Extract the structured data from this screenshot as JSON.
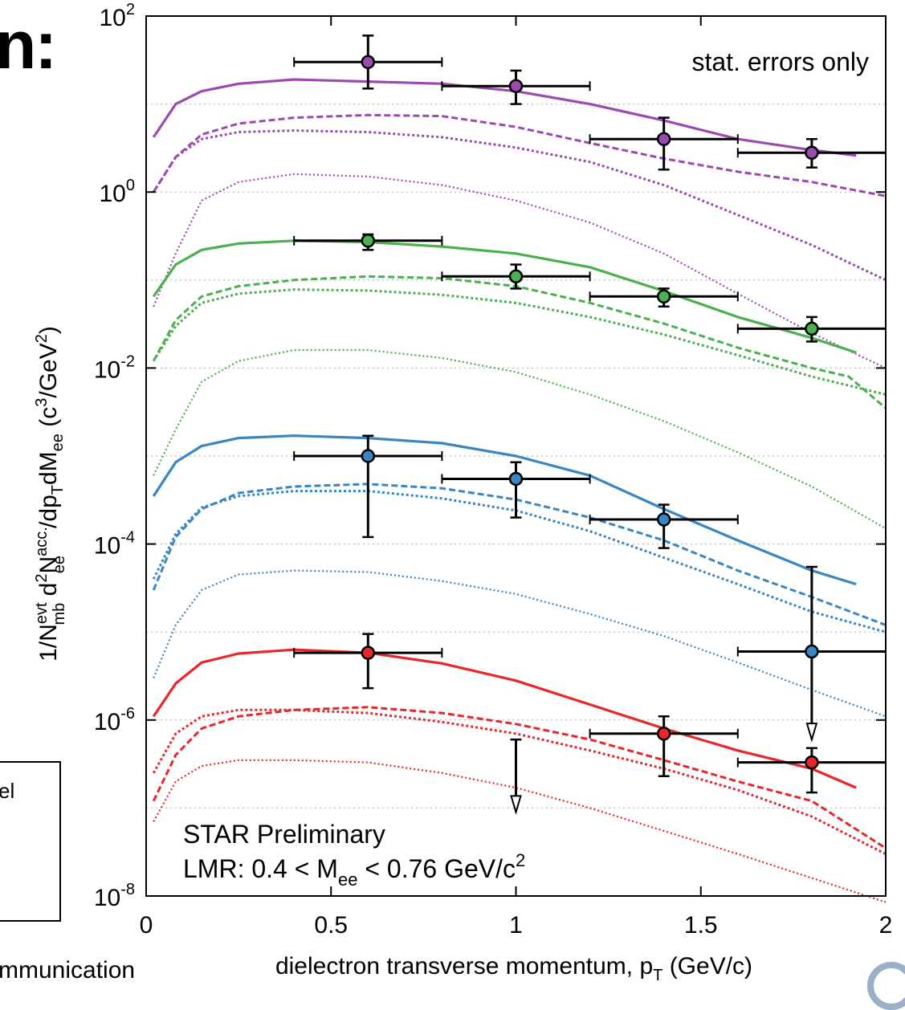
{
  "page": {
    "top_title_fragment": "n:",
    "legend_fragment": "el",
    "bottom_fragment": "mmunication"
  },
  "chart_data": {
    "type": "scatter",
    "xlabel_main": "dielectron transverse momentum, p",
    "xlabel_sub": "T",
    "xlabel_tail": " (GeV/c)",
    "ylabel_parts": [
      "1/N",
      "evt",
      "mb",
      " d",
      "2",
      "N",
      "acc.",
      "ee",
      "/dp",
      "T",
      "dM",
      "ee",
      " (c",
      "3",
      "/GeV",
      "2",
      ")"
    ],
    "x_ticks": [
      "0",
      "0.5",
      "1",
      "1.5",
      "2"
    ],
    "y_ticks": [
      {
        "base": "10",
        "exp": "2"
      },
      {
        "base": "10",
        "exp": "0"
      },
      {
        "base": "10",
        "exp": "-2"
      },
      {
        "base": "10",
        "exp": "-4"
      },
      {
        "base": "10",
        "exp": "-6"
      },
      {
        "base": "10",
        "exp": "-8"
      }
    ],
    "xlim": [
      0,
      2
    ],
    "ylim_log10": [
      -8,
      2
    ],
    "y_scale": "log",
    "annotations": {
      "stat_note": "stat. errors only",
      "preliminary": "STAR Preliminary",
      "lmr_a": "LMR: 0.4 < M",
      "lmr_sub": "ee",
      "lmr_b": " < 0.76 GeV/c",
      "lmr_sup": "2"
    },
    "colors": {
      "purple": "#9b4bb0",
      "green": "#4caf50",
      "blue": "#3a86c3",
      "red": "#e8262b",
      "axis": "#000000",
      "grid": "#aaaaaa"
    },
    "series": [
      {
        "color": "purple",
        "points": [
          {
            "x": 0.6,
            "y": 30,
            "xerr": 0.2,
            "ylo": 15,
            "yhi": 60
          },
          {
            "x": 1.0,
            "y": 16,
            "xerr": 0.2,
            "ylo": 10,
            "yhi": 24
          },
          {
            "x": 1.4,
            "y": 4,
            "xerr": 0.2,
            "ylo": 1.8,
            "yhi": 7
          },
          {
            "x": 1.8,
            "y": 2.8,
            "xerr": 0.2,
            "ylo": 1.9,
            "yhi": 4
          }
        ],
        "solid": [
          [
            0.02,
            4.2
          ],
          [
            0.08,
            10
          ],
          [
            0.15,
            14
          ],
          [
            0.25,
            17
          ],
          [
            0.4,
            19
          ],
          [
            0.6,
            18
          ],
          [
            0.8,
            17
          ],
          [
            1.0,
            14
          ],
          [
            1.2,
            10
          ],
          [
            1.4,
            6.5
          ],
          [
            1.6,
            4
          ],
          [
            1.8,
            3
          ],
          [
            1.92,
            2.6
          ]
        ],
        "dashed": [
          [
            0.02,
            1
          ],
          [
            0.08,
            2.5
          ],
          [
            0.15,
            4.5
          ],
          [
            0.25,
            6
          ],
          [
            0.4,
            7
          ],
          [
            0.6,
            7.5
          ],
          [
            0.8,
            7.3
          ],
          [
            1.0,
            5.5
          ],
          [
            1.2,
            3.6
          ],
          [
            1.4,
            2.4
          ],
          [
            1.6,
            1.7
          ],
          [
            1.8,
            1.3
          ],
          [
            2.0,
            0.9
          ]
        ],
        "dotted_upper": [
          [
            0.02,
            1
          ],
          [
            0.08,
            2.5
          ],
          [
            0.15,
            4
          ],
          [
            0.25,
            4.8
          ],
          [
            0.4,
            5
          ],
          [
            0.6,
            4.8
          ],
          [
            0.8,
            4.2
          ],
          [
            1.0,
            3.2
          ],
          [
            1.2,
            2.2
          ],
          [
            1.4,
            1.2
          ],
          [
            1.6,
            0.55
          ],
          [
            1.8,
            0.25
          ],
          [
            2.0,
            0.1
          ]
        ],
        "dotted_lower": [
          [
            0.02,
            0.05
          ],
          [
            0.08,
            0.2
          ],
          [
            0.15,
            0.8
          ],
          [
            0.25,
            1.3
          ],
          [
            0.4,
            1.6
          ],
          [
            0.6,
            1.5
          ],
          [
            0.8,
            1.2
          ],
          [
            1.0,
            0.8
          ],
          [
            1.2,
            0.45
          ],
          [
            1.4,
            0.2
          ],
          [
            1.6,
            0.07
          ],
          [
            1.8,
            0.025
          ],
          [
            2.0,
            0.01
          ]
        ]
      },
      {
        "color": "green",
        "points": [
          {
            "x": 0.6,
            "y": 0.28,
            "xerr": 0.2,
            "ylo": 0.22,
            "yhi": 0.33
          },
          {
            "x": 1.0,
            "y": 0.11,
            "xerr": 0.2,
            "ylo": 0.08,
            "yhi": 0.15
          },
          {
            "x": 1.4,
            "y": 0.065,
            "xerr": 0.2,
            "ylo": 0.05,
            "yhi": 0.08
          },
          {
            "x": 1.8,
            "y": 0.028,
            "xerr": 0.2,
            "ylo": 0.02,
            "yhi": 0.038
          }
        ],
        "solid": [
          [
            0.02,
            0.065
          ],
          [
            0.08,
            0.15
          ],
          [
            0.15,
            0.22
          ],
          [
            0.25,
            0.26
          ],
          [
            0.4,
            0.28
          ],
          [
            0.6,
            0.27
          ],
          [
            0.8,
            0.24
          ],
          [
            1.0,
            0.2
          ],
          [
            1.2,
            0.14
          ],
          [
            1.4,
            0.075
          ],
          [
            1.6,
            0.038
          ],
          [
            1.8,
            0.022
          ],
          [
            1.92,
            0.015
          ]
        ],
        "dashed": [
          [
            0.02,
            0.012
          ],
          [
            0.08,
            0.035
          ],
          [
            0.15,
            0.065
          ],
          [
            0.25,
            0.085
          ],
          [
            0.4,
            0.1
          ],
          [
            0.6,
            0.11
          ],
          [
            0.8,
            0.105
          ],
          [
            1.0,
            0.085
          ],
          [
            1.2,
            0.055
          ],
          [
            1.4,
            0.032
          ],
          [
            1.6,
            0.017
          ],
          [
            1.8,
            0.01
          ],
          [
            1.9,
            0.008
          ],
          [
            2.0,
            0.0035
          ]
        ],
        "dotted_upper": [
          [
            0.02,
            0.012
          ],
          [
            0.08,
            0.03
          ],
          [
            0.15,
            0.055
          ],
          [
            0.25,
            0.07
          ],
          [
            0.4,
            0.078
          ],
          [
            0.6,
            0.076
          ],
          [
            0.8,
            0.068
          ],
          [
            1.0,
            0.055
          ],
          [
            1.2,
            0.038
          ],
          [
            1.4,
            0.024
          ],
          [
            1.6,
            0.014
          ],
          [
            1.8,
            0.008
          ],
          [
            2.0,
            0.005
          ]
        ],
        "dotted_lower": [
          [
            0.02,
            0.0006
          ],
          [
            0.08,
            0.002
          ],
          [
            0.15,
            0.007
          ],
          [
            0.25,
            0.012
          ],
          [
            0.4,
            0.016
          ],
          [
            0.6,
            0.016
          ],
          [
            0.8,
            0.013
          ],
          [
            1.0,
            0.009
          ],
          [
            1.2,
            0.005
          ],
          [
            1.4,
            0.0025
          ],
          [
            1.6,
            0.0011
          ],
          [
            1.8,
            0.00045
          ],
          [
            2.0,
            0.00015
          ]
        ]
      },
      {
        "color": "blue",
        "points": [
          {
            "x": 0.6,
            "y": 0.001,
            "xerr": 0.2,
            "ylo": 0.00012,
            "yhi": 0.0017
          },
          {
            "x": 1.0,
            "y": 0.00055,
            "xerr": 0.2,
            "ylo": 0.0002,
            "yhi": 0.00085
          },
          {
            "x": 1.4,
            "y": 0.00019,
            "xerr": 0.2,
            "ylo": 9e-05,
            "yhi": 0.00028
          },
          {
            "x": 1.8,
            "y": 6e-06,
            "xerr": 0.2,
            "ylo": 6e-07,
            "yhi": 5.5e-05,
            "arrow": true
          }
        ],
        "solid": [
          [
            0.02,
            0.00035
          ],
          [
            0.08,
            0.00085
          ],
          [
            0.15,
            0.0013
          ],
          [
            0.25,
            0.0016
          ],
          [
            0.4,
            0.0017
          ],
          [
            0.6,
            0.0016
          ],
          [
            0.8,
            0.0014
          ],
          [
            1.0,
            0.001
          ],
          [
            1.2,
            0.0006
          ],
          [
            1.4,
            0.00025
          ],
          [
            1.6,
            0.00011
          ],
          [
            1.8,
            5e-05
          ],
          [
            1.92,
            3.5e-05
          ]
        ],
        "dashed": [
          [
            0.02,
            3e-05
          ],
          [
            0.08,
            0.00012
          ],
          [
            0.15,
            0.00025
          ],
          [
            0.25,
            0.00038
          ],
          [
            0.4,
            0.00045
          ],
          [
            0.6,
            0.00048
          ],
          [
            0.8,
            0.00043
          ],
          [
            1.0,
            0.00032
          ],
          [
            1.2,
            0.0002
          ],
          [
            1.4,
            0.00011
          ],
          [
            1.6,
            5e-05
          ],
          [
            1.8,
            2.5e-05
          ],
          [
            2.0,
            1.2e-05
          ]
        ],
        "dotted_upper": [
          [
            0.02,
            4e-05
          ],
          [
            0.08,
            0.00013
          ],
          [
            0.15,
            0.00026
          ],
          [
            0.25,
            0.00035
          ],
          [
            0.4,
            0.0004
          ],
          [
            0.6,
            0.0004
          ],
          [
            0.8,
            0.00033
          ],
          [
            1.0,
            0.00024
          ],
          [
            1.2,
            0.00014
          ],
          [
            1.4,
            7e-05
          ],
          [
            1.6,
            3.5e-05
          ],
          [
            1.8,
            1.7e-05
          ],
          [
            2.0,
            1e-05
          ]
        ],
        "dotted_lower": [
          [
            0.02,
            3e-06
          ],
          [
            0.08,
            1.2e-05
          ],
          [
            0.15,
            3e-05
          ],
          [
            0.25,
            4.5e-05
          ],
          [
            0.4,
            5e-05
          ],
          [
            0.6,
            4.8e-05
          ],
          [
            0.8,
            3.8e-05
          ],
          [
            1.0,
            2.7e-05
          ],
          [
            1.2,
            1.6e-05
          ],
          [
            1.4,
            9e-06
          ],
          [
            1.6,
            4.5e-06
          ],
          [
            1.8,
            2.2e-06
          ],
          [
            2.0,
            1.1e-06
          ]
        ]
      },
      {
        "color": "red",
        "points": [
          {
            "x": 0.6,
            "y": 5.8e-06,
            "xerr": 0.2,
            "ylo": 2.3e-06,
            "yhi": 9.5e-06
          },
          {
            "x": 1.0,
            "y": 6e-07,
            "xerr": 0,
            "ylo": 9e-08,
            "yhi": 6e-07,
            "arrow": true
          },
          {
            "x": 1.4,
            "y": 7e-07,
            "xerr": 0.2,
            "ylo": 2.3e-07,
            "yhi": 1.1e-06
          },
          {
            "x": 1.8,
            "y": 3.3e-07,
            "xerr": 0.2,
            "ylo": 1.5e-07,
            "yhi": 4.8e-07
          }
        ],
        "solid": [
          [
            0.02,
            1.1e-06
          ],
          [
            0.08,
            2.6e-06
          ],
          [
            0.15,
            4.5e-06
          ],
          [
            0.25,
            5.7e-06
          ],
          [
            0.4,
            6.3e-06
          ],
          [
            0.6,
            5.8e-06
          ],
          [
            0.8,
            4.4e-06
          ],
          [
            1.0,
            2.8e-06
          ],
          [
            1.2,
            1.5e-06
          ],
          [
            1.4,
            8e-07
          ],
          [
            1.6,
            4.5e-07
          ],
          [
            1.8,
            2.8e-07
          ],
          [
            1.92,
            1.7e-07
          ]
        ],
        "dashed": [
          [
            0.02,
            1.2e-07
          ],
          [
            0.08,
            4e-07
          ],
          [
            0.15,
            8e-07
          ],
          [
            0.25,
            1.1e-06
          ],
          [
            0.4,
            1.3e-06
          ],
          [
            0.6,
            1.4e-06
          ],
          [
            0.8,
            1.2e-06
          ],
          [
            1.0,
            9e-07
          ],
          [
            1.2,
            6e-07
          ],
          [
            1.4,
            3.5e-07
          ],
          [
            1.6,
            2e-07
          ],
          [
            1.8,
            1.2e-07
          ],
          [
            2.0,
            3.5e-08
          ]
        ],
        "dotted_upper": [
          [
            0.02,
            2.5e-07
          ],
          [
            0.08,
            7e-07
          ],
          [
            0.15,
            1.1e-06
          ],
          [
            0.25,
            1.3e-06
          ],
          [
            0.4,
            1.3e-06
          ],
          [
            0.6,
            1.2e-06
          ],
          [
            0.8,
            9.5e-07
          ],
          [
            1.0,
            7e-07
          ],
          [
            1.2,
            4.5e-07
          ],
          [
            1.4,
            2.8e-07
          ],
          [
            1.6,
            1.6e-07
          ],
          [
            1.8,
            8e-08
          ],
          [
            2.0,
            3e-08
          ]
        ],
        "dotted_lower": [
          [
            0.02,
            7e-08
          ],
          [
            0.08,
            2e-07
          ],
          [
            0.15,
            3e-07
          ],
          [
            0.25,
            3.5e-07
          ],
          [
            0.4,
            3.5e-07
          ],
          [
            0.6,
            3.3e-07
          ],
          [
            0.8,
            2.5e-07
          ],
          [
            1.0,
            1.7e-07
          ],
          [
            1.2,
            1e-07
          ],
          [
            1.4,
            5.5e-08
          ],
          [
            1.6,
            3e-08
          ],
          [
            1.8,
            1.6e-08
          ],
          [
            2.0,
            8.5e-09
          ]
        ]
      }
    ]
  }
}
